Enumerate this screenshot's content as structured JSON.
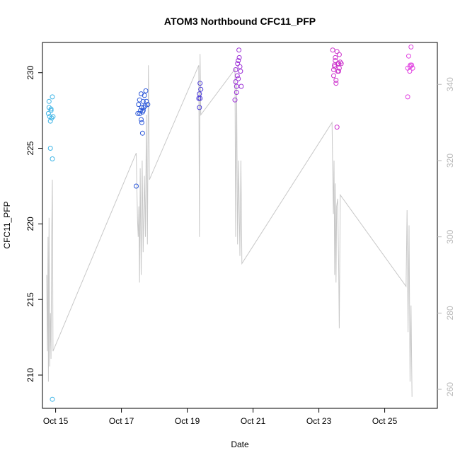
{
  "chart_data": {
    "type": "scatter",
    "title": "ATOM3 Northbound CFC11_PFP",
    "xlabel": "Date",
    "ylabel": "CFC11_PFP",
    "x_axis": {
      "unit": "days",
      "lim": [
        14.6,
        26.6
      ],
      "ticks": [
        {
          "value": 15,
          "label": "Oct 15"
        },
        {
          "value": 17,
          "label": "Oct 17"
        },
        {
          "value": 19,
          "label": "Oct 19"
        },
        {
          "value": 21,
          "label": "Oct 21"
        },
        {
          "value": 23,
          "label": "Oct 23"
        },
        {
          "value": 25,
          "label": "Oct 25"
        }
      ]
    },
    "y_axis": {
      "lim": [
        207.8,
        232.0
      ],
      "ticks": [
        {
          "value": 210,
          "label": "210"
        },
        {
          "value": 215,
          "label": "215"
        },
        {
          "value": 220,
          "label": "220"
        },
        {
          "value": 225,
          "label": "225"
        },
        {
          "value": 230,
          "label": "230"
        }
      ]
    },
    "y2_axis": {
      "color": "#b8b8b8",
      "lim": [
        255.0,
        351.0
      ],
      "ticks": [
        {
          "value": 260,
          "label": "260"
        },
        {
          "value": 280,
          "label": "280"
        },
        {
          "value": 300,
          "label": "300"
        },
        {
          "value": 320,
          "label": "320"
        },
        {
          "value": 340,
          "label": "340"
        }
      ]
    },
    "grid": false,
    "legend": "none",
    "line_series": {
      "color": "#c8c8c8",
      "points": [
        [
          14.73,
          290.0
        ],
        [
          14.75,
          270.0
        ],
        [
          14.77,
          300.0
        ],
        [
          14.78,
          262.0
        ],
        [
          14.8,
          305.0
        ],
        [
          14.82,
          266.0
        ],
        [
          14.84,
          280.0
        ],
        [
          14.86,
          268.0
        ],
        [
          14.88,
          300.0
        ],
        [
          14.9,
          315.0
        ],
        [
          14.92,
          270.0
        ],
        [
          17.45,
          322.0
        ],
        [
          17.47,
          312.0
        ],
        [
          17.49,
          304.0
        ],
        [
          17.51,
          300.0
        ],
        [
          17.53,
          308.0
        ],
        [
          17.55,
          288.0
        ],
        [
          17.57,
          318.0
        ],
        [
          17.6,
          290.0
        ],
        [
          17.63,
          320.0
        ],
        [
          17.66,
          296.0
        ],
        [
          17.7,
          316.0
        ],
        [
          17.73,
          300.0
        ],
        [
          17.76,
          332.0
        ],
        [
          17.79,
          298.0
        ],
        [
          17.82,
          345.0
        ],
        [
          17.85,
          315.0
        ],
        [
          19.35,
          345.0
        ],
        [
          19.37,
          300.0
        ],
        [
          19.39,
          348.0
        ],
        [
          19.41,
          332.0
        ],
        [
          20.45,
          344.0
        ],
        [
          20.47,
          300.0
        ],
        [
          20.5,
          340.0
        ],
        [
          20.53,
          298.0
        ],
        [
          20.56,
          320.0
        ],
        [
          20.6,
          295.0
        ],
        [
          20.63,
          320.0
        ],
        [
          20.66,
          293.0
        ],
        [
          23.4,
          330.0
        ],
        [
          23.42,
          318.0
        ],
        [
          23.44,
          306.0
        ],
        [
          23.46,
          320.0
        ],
        [
          23.48,
          290.0
        ],
        [
          23.5,
          314.0
        ],
        [
          23.52,
          288.0
        ],
        [
          23.54,
          308.0
        ],
        [
          23.57,
          310.0
        ],
        [
          23.6,
          293.0
        ],
        [
          23.62,
          276.0
        ],
        [
          23.65,
          311.0
        ],
        [
          25.65,
          287.0
        ],
        [
          25.68,
          307.0
        ],
        [
          25.71,
          275.0
        ],
        [
          25.74,
          303.0
        ],
        [
          25.77,
          262.0
        ],
        [
          25.8,
          282.0
        ],
        [
          25.83,
          258.0
        ]
      ]
    },
    "scatter_series": [
      {
        "color": "#3fb5e6",
        "points": [
          [
            14.78,
            227.3
          ],
          [
            14.8,
            227.7
          ],
          [
            14.82,
            227.1
          ],
          [
            14.84,
            226.8
          ],
          [
            14.86,
            227.5
          ],
          [
            14.8,
            228.1
          ],
          [
            14.9,
            228.4
          ],
          [
            14.88,
            227.0
          ],
          [
            14.92,
            227.1
          ],
          [
            14.84,
            225.0
          ],
          [
            14.9,
            224.3
          ],
          [
            14.86,
            227.6
          ],
          [
            14.9,
            208.4
          ]
        ]
      },
      {
        "color": "#2a56d8",
        "points": [
          [
            17.45,
            222.5
          ],
          [
            17.5,
            227.3
          ],
          [
            17.52,
            227.9
          ],
          [
            17.55,
            228.2
          ],
          [
            17.58,
            227.5
          ],
          [
            17.6,
            226.9
          ],
          [
            17.62,
            227.7
          ],
          [
            17.64,
            227.4
          ],
          [
            17.66,
            228.1
          ],
          [
            17.68,
            227.7
          ],
          [
            17.7,
            228.5
          ],
          [
            17.72,
            227.8
          ],
          [
            17.74,
            228.8
          ],
          [
            17.76,
            228.1
          ],
          [
            17.8,
            227.9
          ],
          [
            17.6,
            228.6
          ],
          [
            17.62,
            226.7
          ],
          [
            17.56,
            227.3
          ],
          [
            17.64,
            226.0
          ],
          [
            17.66,
            227.5
          ]
        ]
      },
      {
        "color": "#4a3ad8",
        "points": [
          [
            19.35,
            228.3
          ],
          [
            19.37,
            228.6
          ],
          [
            19.39,
            229.3
          ],
          [
            19.41,
            228.9
          ],
          [
            19.37,
            227.7
          ],
          [
            19.39,
            228.3
          ]
        ]
      },
      {
        "color": "#9b2ed6",
        "points": [
          [
            20.45,
            228.2
          ],
          [
            20.47,
            229.4
          ],
          [
            20.5,
            229.1
          ],
          [
            20.52,
            229.8
          ],
          [
            20.55,
            230.8
          ],
          [
            20.57,
            231.5
          ],
          [
            20.6,
            230.4
          ],
          [
            20.62,
            230.1
          ],
          [
            20.64,
            229.1
          ],
          [
            20.47,
            230.2
          ],
          [
            20.5,
            228.7
          ],
          [
            20.53,
            230.6
          ],
          [
            20.58,
            231.0
          ],
          [
            20.55,
            229.6
          ]
        ]
      },
      {
        "color": "#cc33cc",
        "points": [
          [
            23.42,
            231.5
          ],
          [
            23.45,
            230.2
          ],
          [
            23.47,
            230.5
          ],
          [
            23.5,
            231.0
          ],
          [
            23.52,
            229.5
          ],
          [
            23.55,
            231.4
          ],
          [
            23.57,
            230.1
          ],
          [
            23.6,
            230.6
          ],
          [
            23.62,
            230.3
          ],
          [
            23.65,
            230.7
          ],
          [
            23.45,
            229.8
          ],
          [
            23.5,
            230.8
          ],
          [
            23.52,
            229.3
          ],
          [
            23.58,
            230.6
          ],
          [
            23.6,
            230.1
          ],
          [
            23.62,
            231.2
          ],
          [
            23.68,
            230.6
          ],
          [
            23.55,
            226.4
          ],
          [
            23.48,
            230.4
          ]
        ]
      },
      {
        "color": "#e040e0",
        "points": [
          [
            25.7,
            230.3
          ],
          [
            25.73,
            231.1
          ],
          [
            25.76,
            230.1
          ],
          [
            25.78,
            230.5
          ],
          [
            25.8,
            231.7
          ],
          [
            25.82,
            230.5
          ],
          [
            25.85,
            230.3
          ],
          [
            25.7,
            228.4
          ],
          [
            25.77,
            230.4
          ]
        ]
      }
    ]
  }
}
